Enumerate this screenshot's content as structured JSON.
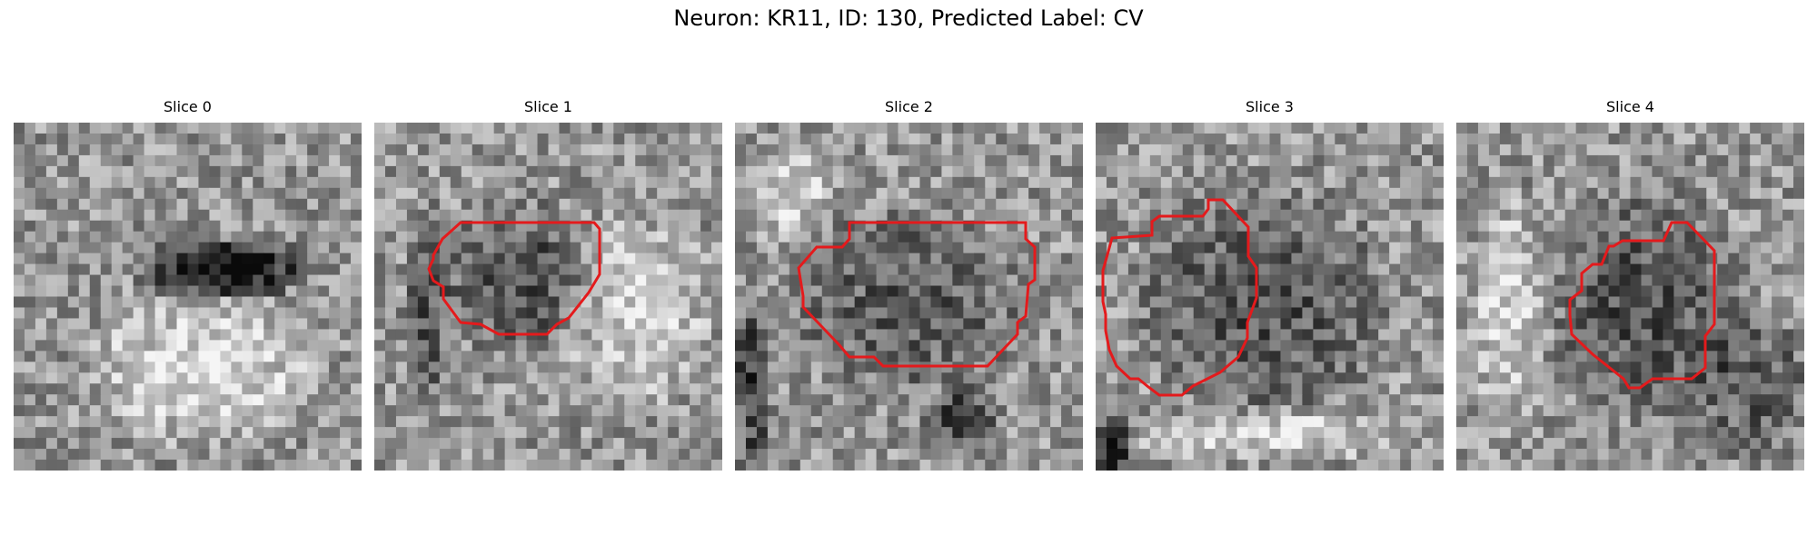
{
  "figure": {
    "title": "Neuron: KR11, ID: 130, Predicted Label: CV"
  },
  "colors": {
    "contour": "#e41a1c",
    "background": "#ffffff",
    "colormap": "grayscale"
  },
  "panels": [
    {
      "title": "Slice 0",
      "has_contour": false,
      "seed": 11,
      "dark_blob": "horizontal-band"
    },
    {
      "title": "Slice 1",
      "has_contour": true,
      "seed": 23,
      "dark_blob": "left-oval"
    },
    {
      "title": "Slice 2",
      "has_contour": true,
      "seed": 37,
      "dark_blob": "mid-oval"
    },
    {
      "title": "Slice 3",
      "has_contour": true,
      "seed": 41,
      "dark_blob": "large-oval"
    },
    {
      "title": "Slice 4",
      "has_contour": true,
      "seed": 59,
      "dark_blob": "small-oval"
    }
  ]
}
